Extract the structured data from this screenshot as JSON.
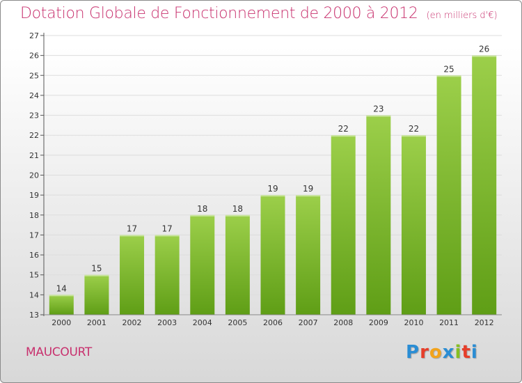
{
  "header": {
    "title": "Dotation Globale de Fonctionnement de 2000 à 2012",
    "unit": "(en milliers d'€)"
  },
  "footer": {
    "commune": "MAUCOURT",
    "logo_letters": [
      "P",
      "r",
      "o",
      "x",
      "i",
      "t",
      "i"
    ],
    "logo_colors": [
      "#2a8dd4",
      "#e63e2a",
      "#f2a31b",
      "#2a8dd4",
      "#85bf22",
      "#e63e2a",
      "#2a8dd4"
    ]
  },
  "colors": {
    "title": "#c8316e",
    "bar_top": "#9ccf4a",
    "bar_bottom": "#5f9e16",
    "grid": "#dddddd"
  },
  "chart_data": {
    "type": "bar",
    "categories": [
      "2000",
      "2001",
      "2002",
      "2003",
      "2004",
      "2005",
      "2006",
      "2007",
      "2008",
      "2009",
      "2010",
      "2011",
      "2012"
    ],
    "values": [
      14,
      15,
      17,
      17,
      18,
      18,
      19,
      19,
      22,
      23,
      22,
      25,
      26
    ],
    "yticks": [
      13,
      14,
      15,
      16,
      17,
      18,
      19,
      20,
      21,
      22,
      23,
      24,
      25,
      26,
      27
    ],
    "ylim": [
      13,
      27
    ],
    "grid": true,
    "legend": "none"
  }
}
